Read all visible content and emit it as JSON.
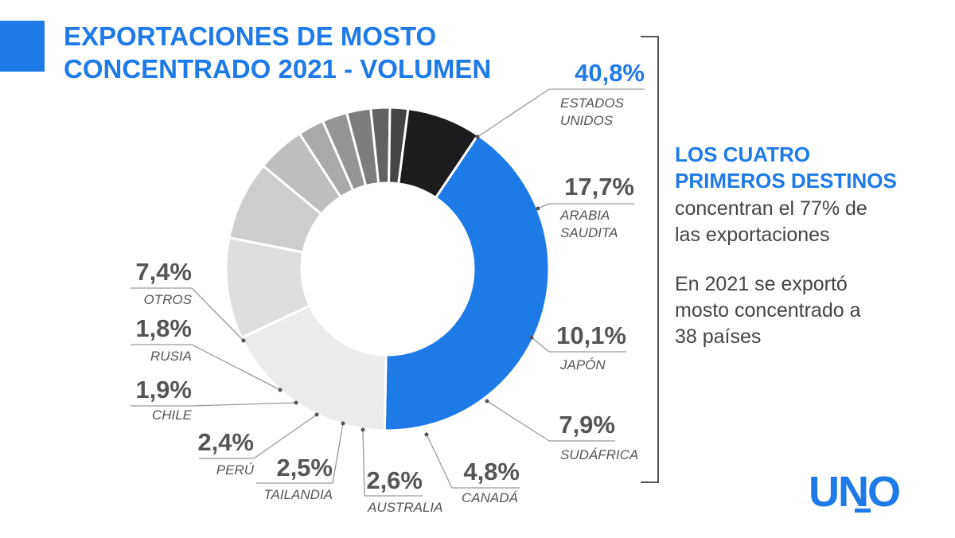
{
  "title": {
    "line1": "EXPORTACIONES DE MOSTO",
    "line2": "CONCENTRADO 2021 - VOLUMEN"
  },
  "colors": {
    "accent": "#1e7ae6",
    "text": "#555555"
  },
  "chart_data": {
    "type": "pie",
    "variant": "donut",
    "title": "EXPORTACIONES DE MOSTO CONCENTRADO 2021 - VOLUMEN",
    "categories": [
      "ESTADOS UNIDOS",
      "ARABIA SAUDITA",
      "JAPÓN",
      "SUDÁFRICA",
      "CANADÁ",
      "AUSTRALIA",
      "TAILANDIA",
      "PERÚ",
      "CHILE",
      "RUSIA",
      "OTROS"
    ],
    "values": [
      40.8,
      17.7,
      10.1,
      7.9,
      4.8,
      2.6,
      2.5,
      2.4,
      1.9,
      1.8,
      7.4
    ],
    "value_labels": [
      "40,8%",
      "17,7%",
      "10,1%",
      "7,9%",
      "4,8%",
      "2,6%",
      "2,5%",
      "2,4%",
      "1,9%",
      "1,8%",
      "7,4%"
    ],
    "name_labels": [
      [
        "ESTADOS",
        "UNIDOS"
      ],
      [
        "ARABIA",
        "SAUDITA"
      ],
      [
        "JAPÓN"
      ],
      [
        "SUDÁFRICA"
      ],
      [
        "CANADÁ"
      ],
      [
        "AUSTRALIA"
      ],
      [
        "TAILANDIA"
      ],
      [
        "PERÚ"
      ],
      [
        "CHILE"
      ],
      [
        "RUSIA"
      ],
      [
        "OTROS"
      ]
    ],
    "slice_colors": [
      "#1e7ae6",
      "#ebebec",
      "#dedede",
      "#cdcdcd",
      "#bebebe",
      "#a9a9a9",
      "#959595",
      "#7d7d7d",
      "#626262",
      "#454545",
      "#1c1c1f"
    ]
  },
  "sidebar": {
    "bold_lines": [
      "LOS CUATRO",
      "PRIMEROS DESTINOS"
    ],
    "text_lines_1": [
      "concentran el 77% de",
      "las exportaciones"
    ],
    "text_lines_2": [
      "En 2021 se exportó",
      "mosto concentrado a",
      "38 países"
    ]
  },
  "logo": {
    "text": "UNO"
  }
}
